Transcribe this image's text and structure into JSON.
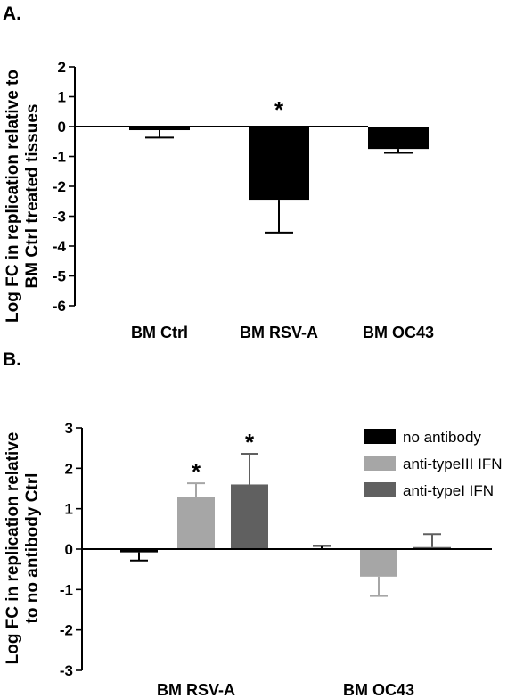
{
  "chart_data": [
    {
      "type": "bar",
      "panel_label": "A.",
      "ylabel_lines": [
        "Log FC in replication relative to",
        "BM Ctrl treated tissues"
      ],
      "categories": [
        "BM Ctrl",
        "BM RSV-A",
        "BM OC43"
      ],
      "values": [
        -0.12,
        -2.45,
        -0.75
      ],
      "errors": [
        0.25,
        1.1,
        0.13
      ],
      "significance": [
        "",
        "*",
        ""
      ],
      "bar_color": "#000000",
      "ylim": [
        -6,
        2
      ],
      "yticks": [
        "2",
        "1",
        "0",
        "-1",
        "-2",
        "-3",
        "-4",
        "-5",
        "-6"
      ]
    },
    {
      "type": "bar",
      "panel_label": "B.",
      "ylabel_lines": [
        "Log FC in replication relative",
        "to no antibody Ctrl"
      ],
      "categories": [
        "BM RSV-A",
        "BM OC43"
      ],
      "series": [
        {
          "name": "no antibody",
          "values": [
            -0.08,
            0.0
          ],
          "errors": [
            0.2,
            0.08
          ],
          "significance": [
            "",
            ""
          ],
          "color": "#000000"
        },
        {
          "name": "anti-typeIII IFN",
          "values": [
            1.28,
            -0.68
          ],
          "errors": [
            0.35,
            0.48
          ],
          "significance": [
            "*",
            ""
          ],
          "color": "#a6a6a6"
        },
        {
          "name": "anti-typeI IFN",
          "values": [
            1.6,
            0.05
          ],
          "errors": [
            0.76,
            0.32
          ],
          "significance": [
            "*",
            ""
          ],
          "color": "#606060"
        }
      ],
      "ylim": [
        -3,
        3
      ],
      "yticks": [
        "3",
        "2",
        "1",
        "0",
        "-1",
        "-2",
        "-3"
      ],
      "legend_position": "top-right"
    }
  ]
}
